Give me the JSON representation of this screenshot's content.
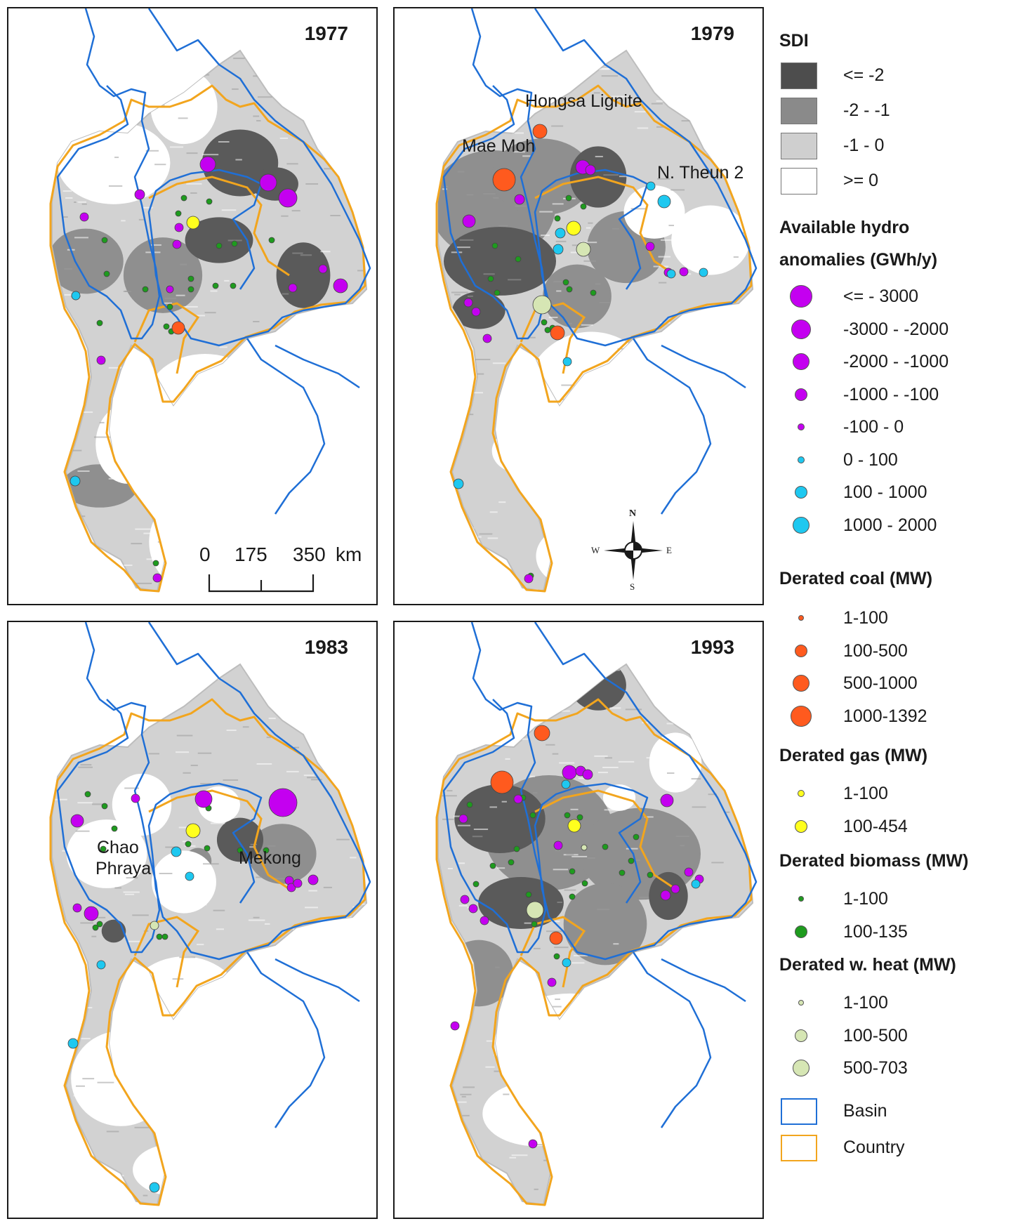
{
  "panels": [
    {
      "year": "1977",
      "pattern": "p1977",
      "coal": [
        [
          242,
          455,
          9
        ]
      ],
      "gas": [
        [
          263,
          305,
          9
        ]
      ],
      "heat": [],
      "hydro": [
        [
          284,
          222,
          11
        ],
        [
          370,
          248,
          12
        ],
        [
          398,
          270,
          13
        ],
        [
          473,
          395,
          10
        ],
        [
          187,
          265,
          7
        ],
        [
          108,
          297,
          6
        ],
        [
          243,
          312,
          6
        ],
        [
          240,
          336,
          6
        ],
        [
          405,
          398,
          6
        ],
        [
          448,
          371,
          6
        ],
        [
          230,
          400,
          5
        ],
        [
          132,
          501,
          6
        ],
        [
          96,
          409,
          6
        ],
        [
          212,
          811,
          6
        ]
      ],
      "cyan": [
        [
          96,
          409,
          0
        ],
        [
          95,
          673,
          7
        ]
      ],
      "bio": [
        [
          137,
          330,
          4
        ],
        [
          140,
          378,
          4
        ],
        [
          195,
          400,
          4
        ],
        [
          260,
          400,
          4
        ],
        [
          230,
          425,
          4
        ],
        [
          232,
          460,
          4
        ],
        [
          240,
          453,
          4
        ],
        [
          250,
          270,
          4
        ],
        [
          286,
          275,
          4
        ],
        [
          242,
          292,
          4
        ],
        [
          300,
          338,
          4
        ],
        [
          322,
          335,
          4
        ],
        [
          375,
          330,
          4
        ],
        [
          260,
          385,
          4
        ],
        [
          295,
          395,
          4
        ],
        [
          130,
          448,
          4
        ],
        [
          225,
          453,
          4
        ],
        [
          320,
          395,
          4
        ],
        [
          210,
          790,
          4
        ]
      ],
      "labels": []
    },
    {
      "year": "1979",
      "pattern": "p1979",
      "coal": [
        [
          207,
          175,
          10
        ],
        [
          156,
          244,
          16
        ],
        [
          232,
          462,
          10
        ]
      ],
      "gas": [
        [
          255,
          313,
          10
        ]
      ],
      "heat": [
        [
          269,
          343,
          10
        ],
        [
          210,
          422,
          13
        ]
      ],
      "hydro": [
        [
          268,
          226,
          10
        ],
        [
          279,
          230,
          7
        ],
        [
          178,
          272,
          7
        ],
        [
          106,
          303,
          9
        ],
        [
          105,
          419,
          6
        ],
        [
          116,
          432,
          6
        ],
        [
          132,
          470,
          6
        ],
        [
          390,
          376,
          6
        ],
        [
          364,
          339,
          6
        ],
        [
          412,
          375,
          6
        ],
        [
          191,
          812,
          6
        ]
      ],
      "cyan": [
        [
          365,
          253,
          6
        ],
        [
          384,
          275,
          9
        ],
        [
          236,
          320,
          7
        ],
        [
          233,
          343,
          7
        ],
        [
          440,
          376,
          6
        ],
        [
          394,
          378,
          6
        ],
        [
          246,
          503,
          6
        ],
        [
          91,
          677,
          7
        ]
      ],
      "bio": [
        [
          248,
          270,
          4
        ],
        [
          269,
          282,
          4
        ],
        [
          232,
          299,
          4
        ],
        [
          143,
          338,
          4
        ],
        [
          176,
          357,
          4
        ],
        [
          137,
          385,
          4
        ],
        [
          146,
          405,
          4
        ],
        [
          244,
          390,
          4
        ],
        [
          249,
          400,
          4
        ],
        [
          283,
          405,
          4
        ],
        [
          225,
          455,
          4
        ],
        [
          218,
          458,
          4
        ],
        [
          213,
          447,
          4
        ],
        [
          194,
          808,
          4
        ]
      ],
      "labels": [
        {
          "key": "hongsa",
          "x": 186,
          "y": 128
        },
        {
          "key": "maemoh",
          "x": 96,
          "y": 192
        },
        {
          "key": "ntheun",
          "x": 374,
          "y": 230
        }
      ]
    },
    {
      "year": "1983",
      "pattern": "p1983",
      "coal": [],
      "gas": [
        [
          263,
          297,
          10
        ]
      ],
      "heat": [
        [
          208,
          432,
          6
        ]
      ],
      "hydro": [
        [
          278,
          252,
          12
        ],
        [
          391,
          257,
          20
        ],
        [
          98,
          283,
          9
        ],
        [
          181,
          251,
          6
        ],
        [
          118,
          415,
          10
        ],
        [
          98,
          407,
          6
        ],
        [
          434,
          367,
          7
        ],
        [
          400,
          368,
          6
        ],
        [
          403,
          378,
          6
        ],
        [
          412,
          372,
          6
        ]
      ],
      "cyan": [
        [
          239,
          327,
          7
        ],
        [
          258,
          362,
          6
        ],
        [
          132,
          488,
          6
        ],
        [
          92,
          600,
          7
        ],
        [
          208,
          805,
          7
        ]
      ],
      "bio": [
        [
          113,
          245,
          4
        ],
        [
          137,
          262,
          4
        ],
        [
          151,
          294,
          4
        ],
        [
          285,
          265,
          4
        ],
        [
          256,
          316,
          4
        ],
        [
          283,
          322,
          4
        ],
        [
          330,
          325,
          4
        ],
        [
          367,
          325,
          4
        ],
        [
          135,
          323,
          4
        ],
        [
          130,
          430,
          4
        ],
        [
          215,
          448,
          4
        ],
        [
          119,
          421,
          4
        ],
        [
          124,
          435,
          4
        ],
        [
          223,
          448,
          4
        ]
      ],
      "labels": [
        {
          "key": "chao",
          "x": 130,
          "y": 282
        },
        {
          "key": "mekong",
          "x": 328,
          "y": 316
        }
      ]
    },
    {
      "year": "1993",
      "pattern": "p1993",
      "coal": [
        [
          210,
          158,
          11
        ],
        [
          153,
          228,
          16
        ],
        [
          230,
          450,
          9
        ]
      ],
      "gas": [
        [
          256,
          290,
          9
        ]
      ],
      "heat": [
        [
          270,
          321,
          4
        ],
        [
          200,
          410,
          12
        ]
      ],
      "hydro": [
        [
          249,
          214,
          10
        ],
        [
          265,
          212,
          7
        ],
        [
          275,
          217,
          7
        ],
        [
          388,
          254,
          9
        ],
        [
          176,
          252,
          6
        ],
        [
          98,
          280,
          6
        ],
        [
          233,
          318,
          6
        ],
        [
          112,
          408,
          6
        ],
        [
          100,
          395,
          6
        ],
        [
          128,
          425,
          6
        ],
        [
          419,
          356,
          6
        ],
        [
          434,
          366,
          6
        ],
        [
          386,
          389,
          7
        ],
        [
          400,
          380,
          6
        ],
        [
          224,
          513,
          6
        ],
        [
          86,
          575,
          6
        ],
        [
          197,
          743,
          6
        ]
      ],
      "cyan": [
        [
          244,
          231,
          6
        ],
        [
          429,
          373,
          6
        ],
        [
          245,
          485,
          6
        ]
      ],
      "bio": [
        [
          107,
          260,
          4
        ],
        [
          183,
          250,
          4
        ],
        [
          197,
          275,
          4
        ],
        [
          246,
          275,
          4
        ],
        [
          264,
          278,
          4
        ],
        [
          300,
          320,
          4
        ],
        [
          337,
          340,
          4
        ],
        [
          344,
          306,
          4
        ],
        [
          324,
          357,
          4
        ],
        [
          364,
          360,
          4
        ],
        [
          253,
          355,
          4
        ],
        [
          271,
          372,
          4
        ],
        [
          174,
          323,
          4
        ],
        [
          166,
          342,
          4
        ],
        [
          140,
          347,
          4
        ],
        [
          116,
          373,
          4
        ],
        [
          191,
          388,
          4
        ],
        [
          253,
          391,
          4
        ],
        [
          199,
          430,
          4
        ],
        [
          231,
          476,
          4
        ]
      ],
      "labels": []
    }
  ],
  "map_labels": {
    "hongsa": "Hongsa Lignite",
    "maemoh": "Mae Moh",
    "ntheun": "N. Theun 2",
    "chao": "Chao\nPhraya",
    "chao_1": "Chao",
    "chao_2": "Phraya",
    "mekong": "Mekong"
  },
  "scale_bar": {
    "t0": "0",
    "t1": "175",
    "t2": "350",
    "unit": "km"
  },
  "compass": {
    "n": "N",
    "s": "S",
    "e": "E",
    "w": "W"
  },
  "legend": {
    "sdi_title": "SDI",
    "sdi": [
      {
        "label": "<= -2",
        "color": "#4d4d4d"
      },
      {
        "label": "-2 - -1",
        "color": "#8a8a8a"
      },
      {
        "label": "-1 - 0",
        "color": "#cfcfcf"
      },
      {
        "label": ">= 0",
        "color": "#ffffff"
      }
    ],
    "hydro_title_1": "Available hydro",
    "hydro_title_2": "anomalies (GWh/y)",
    "hydro": [
      {
        "label": "<= - 3000",
        "r": 16,
        "color": "#c400f0"
      },
      {
        "label": "-3000 - -2000",
        "r": 14,
        "color": "#c400f0"
      },
      {
        "label": "-2000 - -1000",
        "r": 12,
        "color": "#c400f0"
      },
      {
        "label": "-1000 - -100",
        "r": 9,
        "color": "#c400f0"
      },
      {
        "label": "-100 - 0",
        "r": 5,
        "color": "#c400f0"
      },
      {
        "label": "0 - 100",
        "r": 5,
        "color": "#1ec8f0"
      },
      {
        "label": "100 - 1000",
        "r": 9,
        "color": "#1ec8f0"
      },
      {
        "label": "1000 - 2000",
        "r": 12,
        "color": "#1ec8f0"
      }
    ],
    "coal_title": "Derated coal (MW)",
    "coal": [
      {
        "label": "1-100",
        "r": 4,
        "color": "#ff5a1e"
      },
      {
        "label": "100-500",
        "r": 9,
        "color": "#ff5a1e"
      },
      {
        "label": "500-1000",
        "r": 12,
        "color": "#ff5a1e"
      },
      {
        "label": "1000-1392",
        "r": 15,
        "color": "#ff5a1e"
      }
    ],
    "gas_title": "Derated gas (MW)",
    "gas": [
      {
        "label": "1-100",
        "r": 5,
        "color": "#ffff1e"
      },
      {
        "label": "100-454",
        "r": 9,
        "color": "#ffff1e"
      }
    ],
    "bio_title": "Derated biomass (MW)",
    "bio": [
      {
        "label": "1-100",
        "r": 4,
        "color": "#1e9b1e"
      },
      {
        "label": "100-135",
        "r": 9,
        "color": "#1e9b1e"
      }
    ],
    "heat_title": "Derated w. heat (MW)",
    "heat": [
      {
        "label": "1-100",
        "r": 4,
        "color": "#d6e6b4"
      },
      {
        "label": "100-500",
        "r": 9,
        "color": "#d6e6b4"
      },
      {
        "label": "500-703",
        "r": 12,
        "color": "#d6e6b4"
      }
    ],
    "basin_label": "Basin",
    "basin_color": "#1f6fd6",
    "country_label": "Country",
    "country_color": "#f2a51e"
  }
}
